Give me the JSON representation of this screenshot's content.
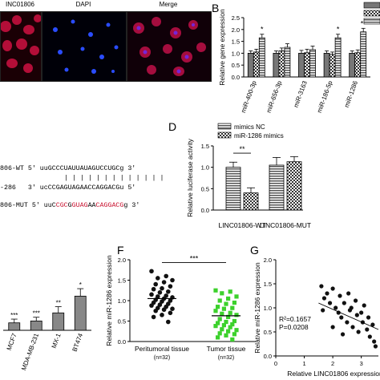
{
  "panels": {
    "A": {
      "letters": "",
      "images": [
        {
          "label": "INC01806",
          "color": "#d0104a"
        },
        {
          "label": "DAPI",
          "color": "#1a3cd8"
        },
        {
          "label": "Merge",
          "color": "#d0104a"
        }
      ]
    },
    "B": {
      "letter": "B"
    },
    "C": {
      "rows": [
        {
          "name": "806-WT",
          "seq_plain": "5' uuGCCCUAUUAUAGUCCUGCg 3'"
        },
        {
          "name": "-286",
          "seq_plain": "3' ucCCGAGUAGAACCAGGACGu 5'"
        },
        {
          "name": "806-MUT",
          "seq_parts": [
            {
              "t": "5' uuC",
              "red": false
            },
            {
              "t": "CGC",
              "red": true
            },
            {
              "t": "G",
              "red": false
            },
            {
              "t": "GUAG",
              "red": true
            },
            {
              "t": "AA",
              "red": false
            },
            {
              "t": "CAGGACG",
              "red": true
            },
            {
              "t": "g 3'",
              "red": false
            }
          ]
        }
      ],
      "pairing": "| | | | | | | | | | | | |"
    },
    "D": {
      "letter": "D"
    },
    "F": {
      "letter": "F"
    },
    "G": {
      "letter": "G"
    }
  },
  "chart_data": [
    {
      "id": "B",
      "type": "bar",
      "ylabel": "Relative gene expression",
      "ylim": [
        0.0,
        2.5
      ],
      "yticks": [
        "0.0",
        "0.5",
        "1.0",
        "1.5",
        "2.0",
        "2.5"
      ],
      "categories": [
        "miR-400-3p",
        "miR-656-3p",
        "miR-3163",
        "miR-186-5p",
        "miR-1286"
      ],
      "series": [
        {
          "values": [
            1.0,
            1.0,
            1.0,
            1.0,
            1.0
          ],
          "errors": [
            0.1,
            0.1,
            0.12,
            0.1,
            0.1
          ],
          "pattern": "solid-gray"
        },
        {
          "values": [
            1.05,
            1.1,
            1.02,
            0.95,
            1.02
          ],
          "errors": [
            0.12,
            0.12,
            0.15,
            0.1,
            0.12
          ],
          "pattern": "checker"
        },
        {
          "values": [
            1.65,
            1.25,
            1.15,
            1.65,
            1.9
          ],
          "errors": [
            0.15,
            0.15,
            0.15,
            0.15,
            0.15
          ],
          "pattern": "stripe"
        }
      ],
      "annotations": [
        {
          "category": 0,
          "text": "*"
        },
        {
          "category": 3,
          "text": "*"
        },
        {
          "category": 4,
          "text": "**"
        }
      ]
    },
    {
      "id": "D",
      "type": "bar",
      "ylabel": "Relative luciferase activity",
      "ylim": [
        0.0,
        1.5
      ],
      "yticks": [
        "0.0",
        "0.5",
        "1.0",
        "1.5"
      ],
      "categories": [
        "LINC01806-WT",
        "LINC01806-MUT"
      ],
      "series": [
        {
          "name": "mimics NC",
          "values": [
            1.0,
            1.05
          ],
          "errors": [
            0.12,
            0.18
          ],
          "pattern": "stripe"
        },
        {
          "name": "miR-1286 mimics",
          "values": [
            0.4,
            1.13
          ],
          "errors": [
            0.12,
            0.12
          ],
          "pattern": "checker"
        }
      ],
      "annotations": [
        {
          "text": "**"
        }
      ]
    },
    {
      "id": "E",
      "type": "bar",
      "ylabel": "",
      "categories": [
        "MCF7",
        "MDA-MB-231",
        "MX-1",
        "BT474"
      ],
      "values": [
        0.12,
        0.15,
        0.28,
        0.55
      ],
      "errors": [
        0.06,
        0.06,
        0.1,
        0.12
      ],
      "annotations": [
        "***",
        "***",
        "**",
        "*"
      ]
    },
    {
      "id": "F",
      "type": "scatter",
      "ylabel": "Relative miR-1286 expression",
      "ylim": [
        0.0,
        2.0
      ],
      "yticks": [
        "0.0",
        "0.5",
        "1.0",
        "1.5",
        "2.0"
      ],
      "groups": [
        {
          "name": "Peritumoral tissue",
          "n": "(n=32)",
          "mean": 1.05,
          "values": [
            1.72,
            1.6,
            1.55,
            1.5,
            1.45,
            1.4,
            1.35,
            1.3,
            1.28,
            1.22,
            1.2,
            1.15,
            1.12,
            1.1,
            1.08,
            1.05,
            1.02,
            1.0,
            0.98,
            0.95,
            0.92,
            0.9,
            0.88,
            0.85,
            0.82,
            0.8,
            0.78,
            0.75,
            0.7,
            0.65,
            0.6,
            0.48
          ]
        },
        {
          "name": "Tumor tissue",
          "n": "(n=32)",
          "mean": 0.63,
          "values": [
            1.25,
            1.22,
            1.18,
            1.1,
            1.05,
            1.0,
            0.95,
            0.92,
            0.85,
            0.82,
            0.8,
            0.75,
            0.7,
            0.68,
            0.65,
            0.6,
            0.55,
            0.5,
            0.48,
            0.45,
            0.42,
            0.4,
            0.38,
            0.35,
            0.3,
            0.28,
            0.25,
            0.2,
            0.18,
            0.15,
            0.1,
            0.05
          ]
        }
      ],
      "significance": "***"
    },
    {
      "id": "G",
      "type": "scatter",
      "xlabel": "Relative LINC01806 expression",
      "ylabel": "Relative miR-1286 expression",
      "xlim": [
        0.0,
        3.6
      ],
      "ylim": [
        0.0,
        2.0
      ],
      "xticks": [
        "0",
        "1",
        "2",
        "3"
      ],
      "yticks": [
        "0.0",
        "0.5",
        "1.0",
        "1.5",
        "2.0"
      ],
      "annotation_r2": "R²=0.1657",
      "annotation_p": "P=0.0208",
      "points": [
        [
          1.6,
          1.45
        ],
        [
          1.7,
          1.2
        ],
        [
          1.8,
          1.3
        ],
        [
          1.9,
          1.1
        ],
        [
          2.0,
          1.4
        ],
        [
          2.1,
          1.0
        ],
        [
          2.2,
          0.9
        ],
        [
          2.25,
          1.25
        ],
        [
          2.3,
          0.8
        ],
        [
          2.4,
          1.1
        ],
        [
          2.5,
          0.7
        ],
        [
          2.55,
          1.3
        ],
        [
          2.6,
          0.95
        ],
        [
          2.7,
          0.6
        ],
        [
          2.8,
          1.15
        ],
        [
          2.85,
          0.85
        ],
        [
          2.9,
          0.5
        ],
        [
          3.0,
          0.9
        ],
        [
          3.05,
          0.7
        ],
        [
          3.1,
          1.05
        ],
        [
          3.2,
          0.55
        ],
        [
          3.25,
          0.8
        ],
        [
          3.3,
          0.4
        ],
        [
          3.4,
          0.65
        ],
        [
          3.45,
          0.3
        ],
        [
          3.5,
          0.2
        ],
        [
          1.65,
          0.95
        ],
        [
          2.0,
          0.6
        ],
        [
          2.35,
          0.45
        ],
        [
          2.65,
          1.0
        ]
      ],
      "fit": [
        [
          1.5,
          1.1
        ],
        [
          3.6,
          0.55
        ]
      ]
    }
  ]
}
